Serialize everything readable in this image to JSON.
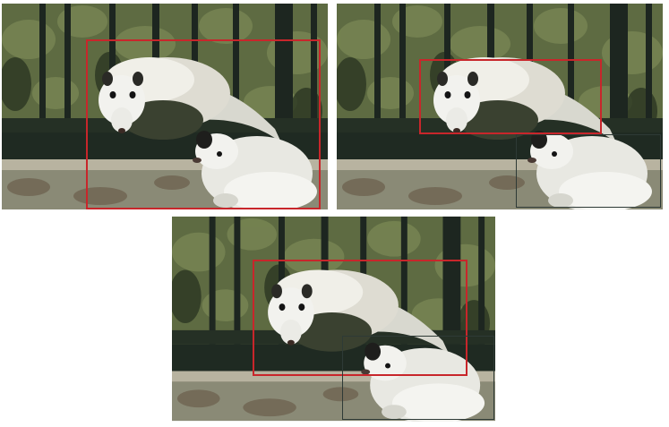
{
  "figure": {
    "panels": [
      {
        "name": "panel-1",
        "boxes": [
          {
            "name": "detection-box-red",
            "color": "#c8262b"
          }
        ]
      },
      {
        "name": "panel-2",
        "boxes": [
          {
            "name": "detection-box-red",
            "color": "#c8262b"
          },
          {
            "name": "detection-box-dark",
            "color": "#2e3a36"
          }
        ]
      },
      {
        "name": "panel-3",
        "boxes": [
          {
            "name": "detection-box-red",
            "color": "#c8262b"
          },
          {
            "name": "detection-box-dark",
            "color": "#2e3a36"
          }
        ]
      }
    ]
  },
  "colors": {
    "background": "#ffffff",
    "foliage_dark": "#28321f",
    "foliage_mid": "#5e6b42",
    "fence_post": "#1d2620",
    "ground": "#8a8a76",
    "possum_fur": "#e4e4dc"
  }
}
